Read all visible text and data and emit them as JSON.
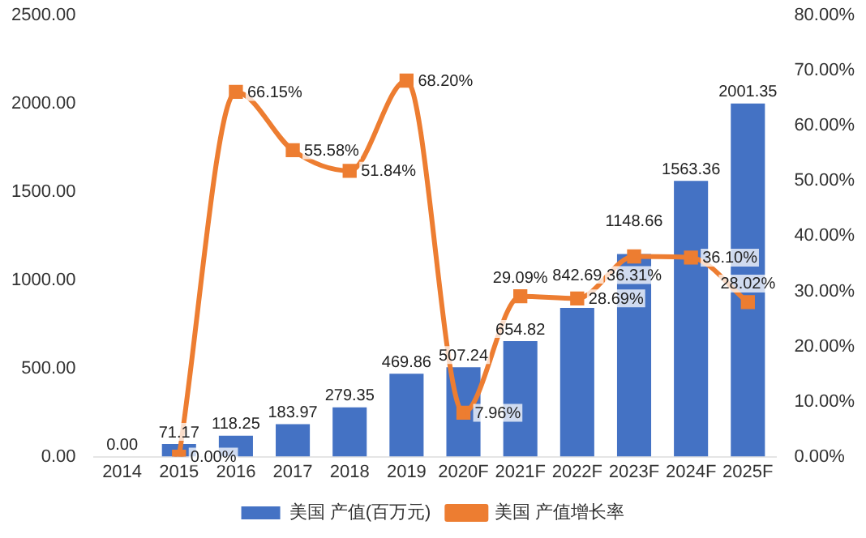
{
  "chart_data": {
    "type": "bar",
    "categories": [
      "2014",
      "2015",
      "2016",
      "2017",
      "2018",
      "2019",
      "2020F",
      "2021F",
      "2022F",
      "2023F",
      "2024F",
      "2025F"
    ],
    "series": [
      {
        "name": "美国 产值(百万元)",
        "color": "#4472c4",
        "values": [
          0,
          71.17,
          118.25,
          183.97,
          279.35,
          469.86,
          507.24,
          654.82,
          842.69,
          1148.66,
          1563.36,
          2001.35
        ],
        "value_labels": [
          "0.00",
          "71.17",
          "118.25",
          "183.97",
          "279.35",
          "469.86",
          "507.24",
          "654.82",
          "842.69",
          "1148.66",
          "1563.36",
          "2001.35"
        ]
      },
      {
        "name": "美国 产值增长率",
        "type": "line",
        "axis": "y2",
        "color": "#ed7d31",
        "values": [
          null,
          0,
          66.15,
          55.58,
          51.84,
          68.2,
          7.96,
          29.09,
          28.69,
          36.31,
          36.1,
          28.02
        ],
        "value_labels": [
          null,
          "0.00%",
          "66.15%",
          "55.58%",
          "51.84%",
          "68.20%",
          "7.96%",
          "29.09%",
          "28.69%",
          "36.31%",
          "36.10%",
          "28.02%"
        ]
      }
    ],
    "ylim": [
      0,
      2500
    ],
    "yticks": [
      {
        "value": 0,
        "label": "0.00"
      },
      {
        "value": 500,
        "label": "500.00"
      },
      {
        "value": 1000,
        "label": "1000.00"
      },
      {
        "value": 1500,
        "label": "1500.00"
      },
      {
        "value": 2000,
        "label": "2000.00"
      },
      {
        "value": 2500,
        "label": "2500.00"
      }
    ],
    "y2lim": [
      0,
      80
    ],
    "y2ticks": [
      {
        "value": 0,
        "label": "0.00%"
      },
      {
        "value": 10,
        "label": "10.00%"
      },
      {
        "value": 20,
        "label": "20.00%"
      },
      {
        "value": 30,
        "label": "30.00%"
      },
      {
        "value": 40,
        "label": "40.00%"
      },
      {
        "value": 50,
        "label": "50.00%"
      },
      {
        "value": 60,
        "label": "60.00%"
      },
      {
        "value": 70,
        "label": "70.00%"
      },
      {
        "value": 80,
        "label": "80.00%"
      }
    ],
    "grid": false,
    "legend": "bottom",
    "marker": "square",
    "line_style": "solid"
  }
}
